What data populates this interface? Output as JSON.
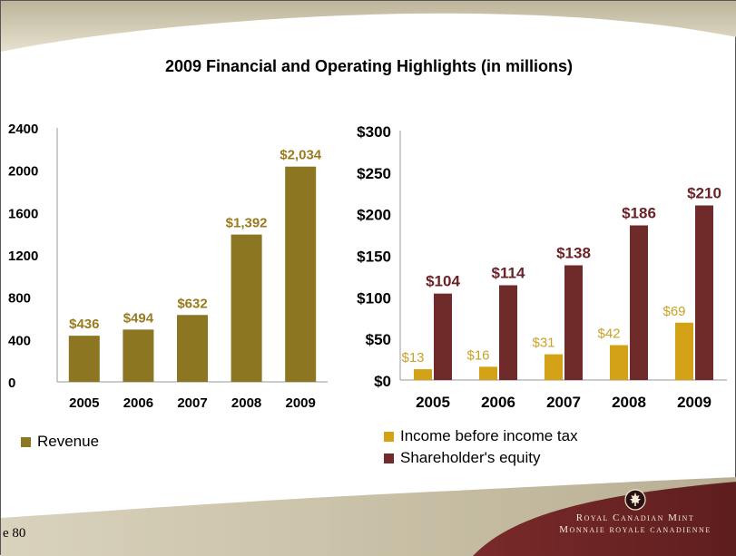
{
  "slide": {
    "title": "2009 Financial and Operating Highlights (in millions)",
    "page_label": "e 80",
    "logo_line1": "Royal Canadian Mint",
    "logo_line2": "Monnaie royale canadienne"
  },
  "colors": {
    "revenue": "#8c7622",
    "income": "#d4a216",
    "equity": "#6f2a2a",
    "revenue_label": "#9a7a1e",
    "income_label": "#c9a227",
    "equity_label": "#6b2328"
  },
  "chart_data": [
    {
      "type": "bar",
      "categories": [
        "2005",
        "2006",
        "2007",
        "2008",
        "2009"
      ],
      "series": [
        {
          "name": "Revenue",
          "values": [
            436,
            494,
            632,
            1392,
            2034
          ]
        }
      ],
      "data_labels": [
        "$436",
        "$494",
        "$632",
        "$1,392",
        "$2,034"
      ],
      "y_ticks": [
        "0",
        "400",
        "800",
        "1200",
        "1600",
        "2000",
        "2400"
      ],
      "ylim": [
        0,
        2400
      ],
      "legend": "bottom-left",
      "grid": false
    },
    {
      "type": "bar",
      "categories": [
        "2005",
        "2006",
        "2007",
        "2008",
        "2009"
      ],
      "series": [
        {
          "name": "Income before income tax",
          "values": [
            13,
            16,
            31,
            42,
            69
          ],
          "data_labels": [
            "$13",
            "$16",
            "$31",
            "$42",
            "$69"
          ]
        },
        {
          "name": "Shareholder's equity",
          "values": [
            104,
            114,
            138,
            186,
            210
          ],
          "data_labels": [
            "$104",
            "$114",
            "$138",
            "$186",
            "$210"
          ]
        }
      ],
      "y_ticks": [
        "$0",
        "$50",
        "$100",
        "$150",
        "$200",
        "$250",
        "$300"
      ],
      "ylim": [
        0,
        300
      ],
      "legend": "bottom",
      "grid": false
    }
  ]
}
